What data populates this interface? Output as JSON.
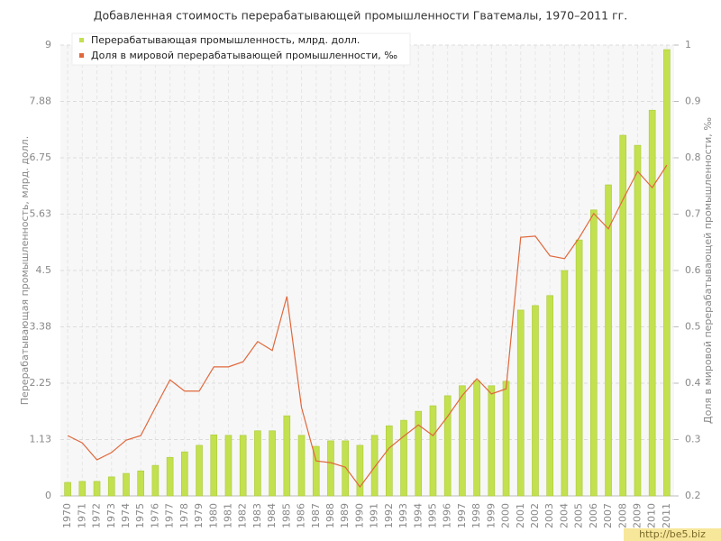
{
  "chart_data": {
    "type": "bar",
    "title": "Добавленная стоимость перерабатывающей промышленности Гватемалы, 1970–2011 гг.",
    "y_label": "Перерабатывающая промышленность, млрд. долл.",
    "y2_label": "Доля в мировой перерабатывающей промышленности, ‰",
    "watermark": "http://be5.biz",
    "categories": [
      "1970",
      "1971",
      "1972",
      "1973",
      "1974",
      "1975",
      "1976",
      "1977",
      "1978",
      "1979",
      "1980",
      "1981",
      "1982",
      "1983",
      "1984",
      "1985",
      "1986",
      "1987",
      "1988",
      "1989",
      "1990",
      "1991",
      "1992",
      "1993",
      "1994",
      "1995",
      "1996",
      "1997",
      "1998",
      "1999",
      "2000",
      "2001",
      "2002",
      "2003",
      "2004",
      "2005",
      "2006",
      "2007",
      "2008",
      "2009",
      "2010",
      "2011"
    ],
    "series": [
      {
        "name": "Перерабатывающая промышленность, млрд. долл.",
        "type": "bar",
        "color": "#c3e04f",
        "values": [
          0.27,
          0.29,
          0.29,
          0.38,
          0.45,
          0.5,
          0.61,
          0.77,
          0.88,
          1.01,
          1.22,
          1.21,
          1.21,
          1.3,
          1.3,
          1.6,
          1.21,
          0.99,
          1.1,
          1.1,
          1.01,
          1.21,
          1.4,
          1.51,
          1.69,
          1.8,
          2.0,
          2.2,
          2.3,
          2.2,
          2.29,
          3.71,
          3.8,
          4.0,
          4.5,
          5.11,
          5.71,
          6.21,
          7.2,
          7.0,
          7.7,
          8.91
        ]
      },
      {
        "name": "Доля в мировой перерабатывающей промышленности, ‰",
        "type": "line",
        "axis": "y2",
        "color": "#e0683c",
        "values": [
          0.307,
          0.294,
          0.264,
          0.277,
          0.299,
          0.307,
          0.357,
          0.406,
          0.386,
          0.386,
          0.429,
          0.429,
          0.438,
          0.474,
          0.458,
          0.554,
          0.357,
          0.262,
          0.259,
          0.251,
          0.216,
          0.251,
          0.285,
          0.306,
          0.326,
          0.307,
          0.341,
          0.378,
          0.408,
          0.381,
          0.39,
          0.659,
          0.661,
          0.626,
          0.621,
          0.658,
          0.701,
          0.674,
          0.726,
          0.776,
          0.747,
          0.787
        ]
      }
    ],
    "ylim": [
      0,
      9
    ],
    "yticks": [
      0,
      {
        "value": 1.125,
        "label": "1.13"
      },
      2.25,
      {
        "value": 3.375,
        "label": "3.38"
      },
      4.5,
      {
        "value": 5.625,
        "label": "5.63"
      },
      6.75,
      {
        "value": 7.875,
        "label": "7.88"
      },
      9
    ],
    "y2lim": [
      0.2,
      1
    ],
    "y2ticks": [
      0.2,
      0.3,
      0.4,
      0.5,
      0.6,
      0.7,
      0.8,
      0.9,
      1
    ],
    "grid": true,
    "legend": "top-left"
  }
}
